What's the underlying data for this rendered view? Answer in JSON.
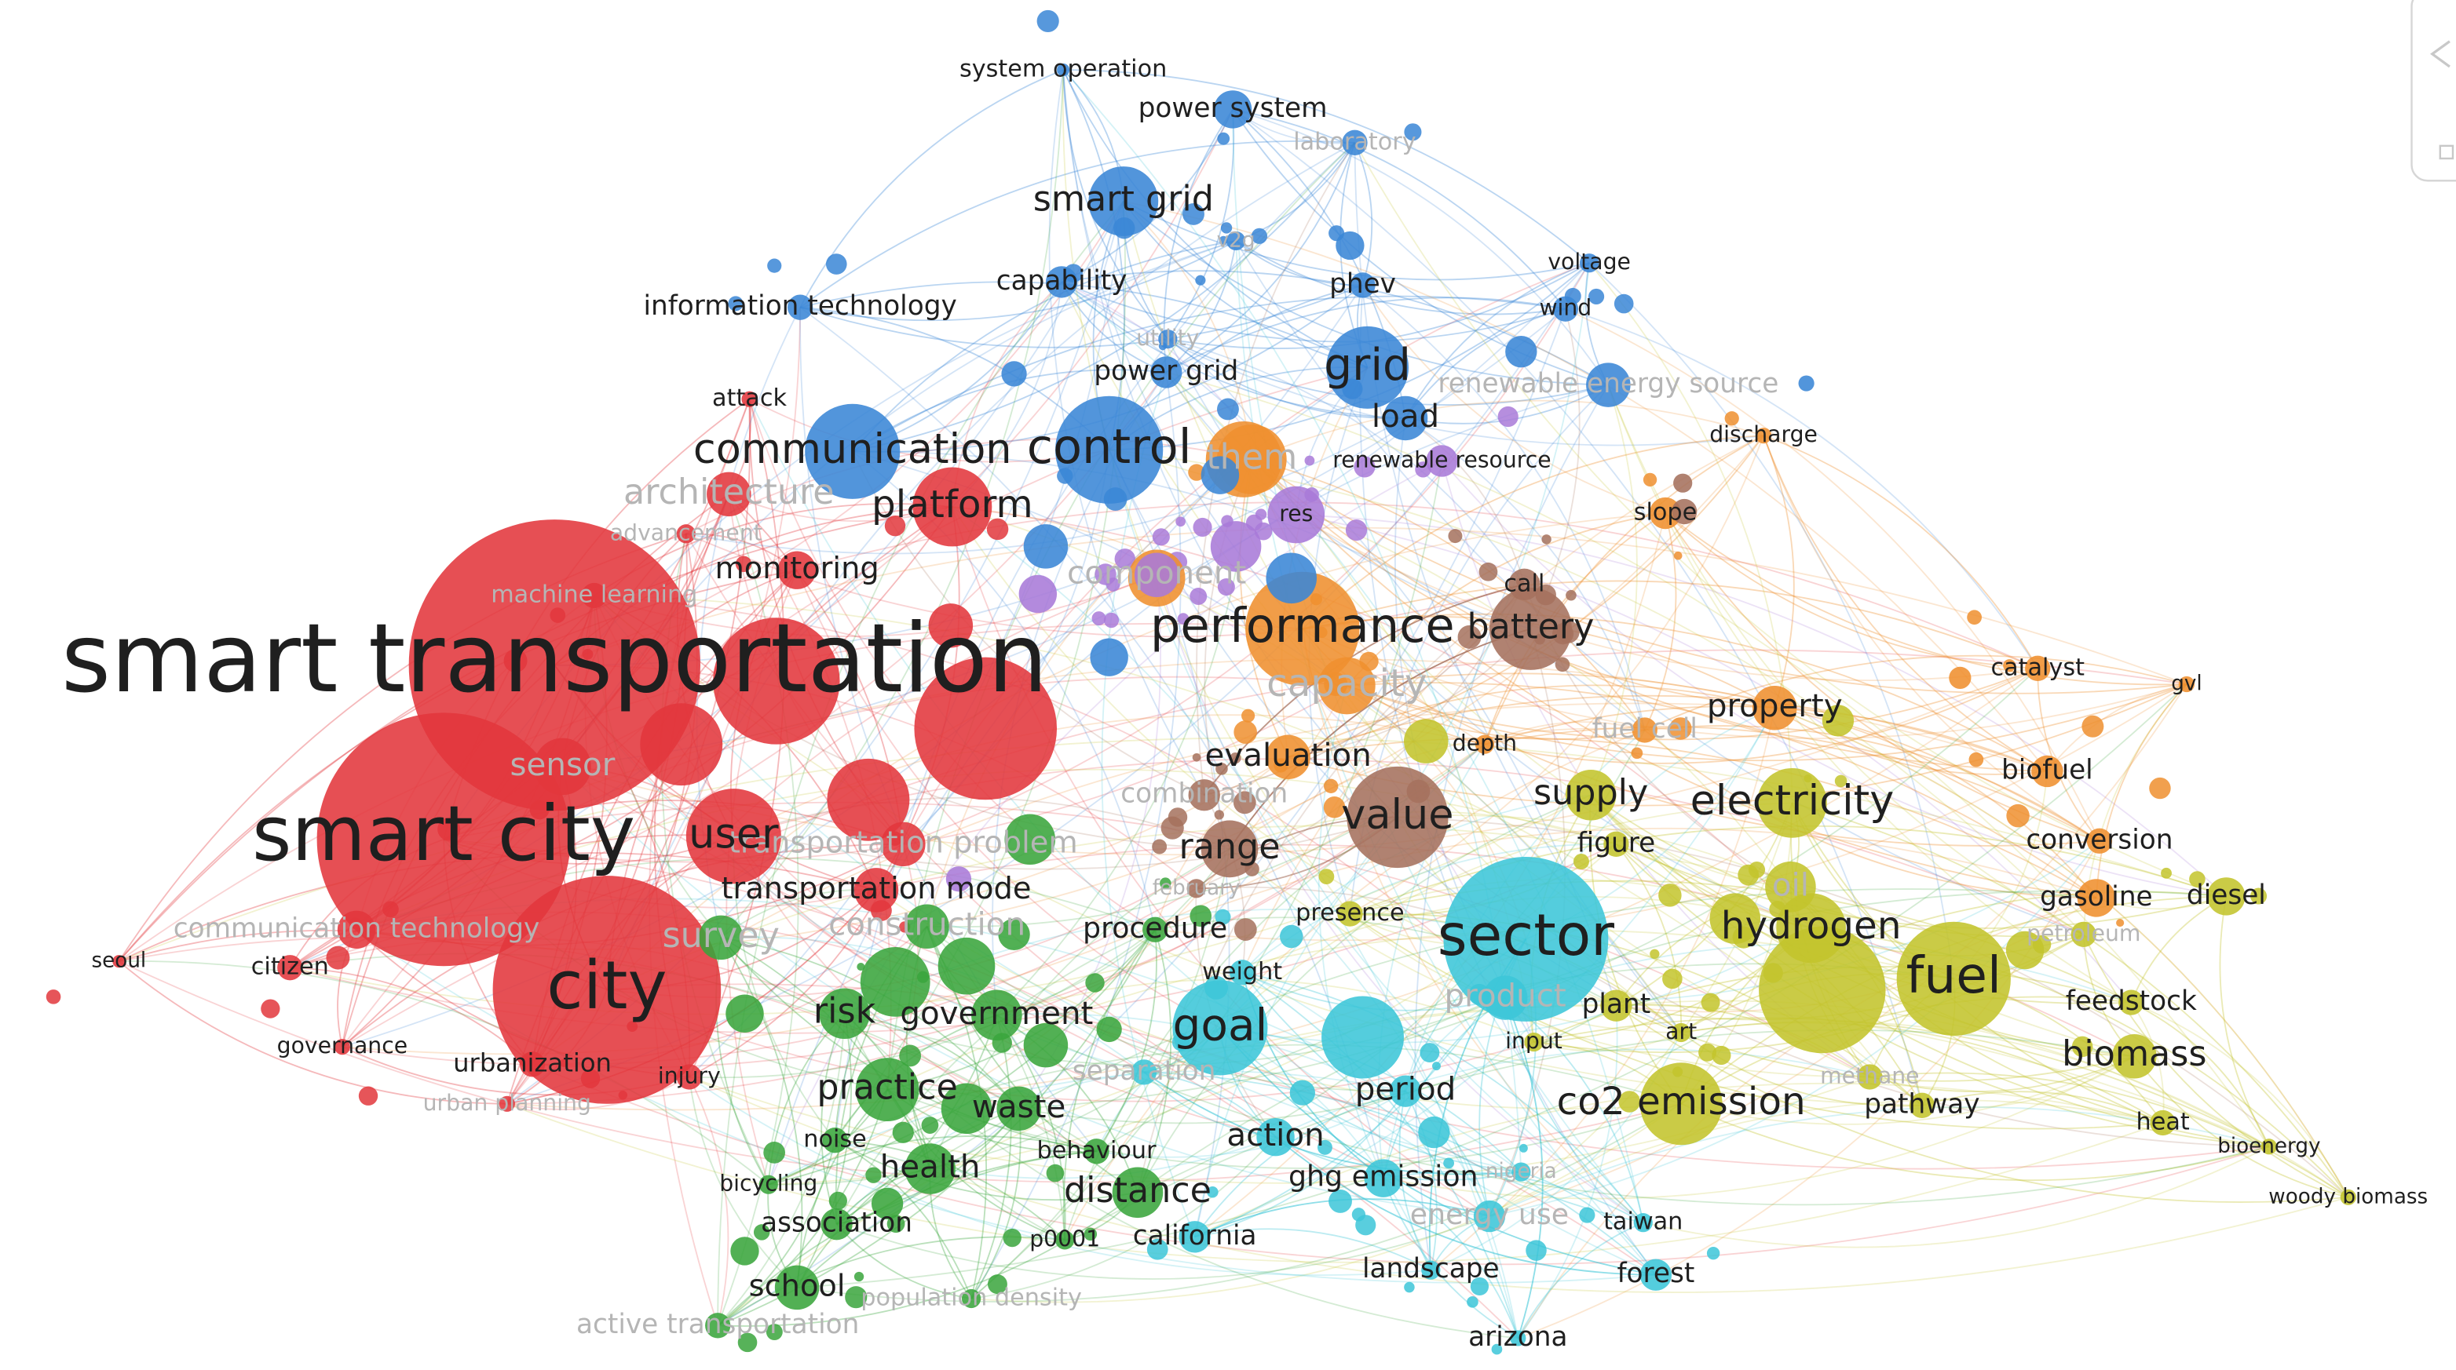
{
  "clusters": [
    {
      "color": "#e2373c",
      "nodes": [
        "smart transportation",
        "smart city",
        "city",
        "communication technology",
        "citizen",
        "seoul",
        "governance",
        "urbanization",
        "urban planning",
        "injury",
        "user",
        "transportation mode",
        "transportation problem",
        "sensor",
        "platform",
        "architecture",
        "monitoring",
        "machine learning",
        "attack",
        "advancement"
      ]
    },
    {
      "color": "#3a86d6",
      "nodes": [
        "system operation",
        "power system",
        "laboratory",
        "smart grid",
        "capability",
        "phev",
        "voltage",
        "wind",
        "information technology",
        "utility",
        "power grid",
        "grid",
        "renewable energy source",
        "communication",
        "control",
        "load",
        "v2g"
      ]
    },
    {
      "color": "#a97ad8",
      "nodes": [
        "renewable resource",
        "res",
        "component"
      ]
    },
    {
      "color": "#ef8f2f",
      "nodes": [
        "performance",
        "capacity",
        "evaluation",
        "depth",
        "fuel cell",
        "property",
        "catalyst",
        "gvl",
        "biofuel",
        "conversion",
        "gasoline",
        "discharge",
        "slope",
        "them"
      ]
    },
    {
      "color": "#a5715d",
      "nodes": [
        "battery",
        "call",
        "value",
        "range",
        "combination",
        "february"
      ]
    },
    {
      "color": "#c3c42c",
      "nodes": [
        "supply",
        "electricity",
        "figure",
        "hydrogen",
        "oil",
        "diesel",
        "petroleum",
        "fuel",
        "feedstock",
        "biomass",
        "heat",
        "bioenergy",
        "woody biomass",
        "pathway",
        "co2 emission",
        "plant",
        "art",
        "input",
        "methane",
        "presence"
      ]
    },
    {
      "color": "#3cc6d8",
      "nodes": [
        "sector",
        "goal",
        "product",
        "period",
        "action",
        "ghg emission",
        "energy use",
        "nigeria",
        "taiwan",
        "landscape",
        "forest",
        "arizona",
        "california",
        "separation",
        "weight"
      ]
    },
    {
      "color": "#3aa53c",
      "nodes": [
        "survey",
        "construction",
        "procedure",
        "risk",
        "government",
        "practice",
        "waste",
        "noise",
        "behaviour",
        "health",
        "distance",
        "bicycling",
        "association",
        "p0001",
        "school",
        "population density",
        "active transportation"
      ]
    }
  ]
}
